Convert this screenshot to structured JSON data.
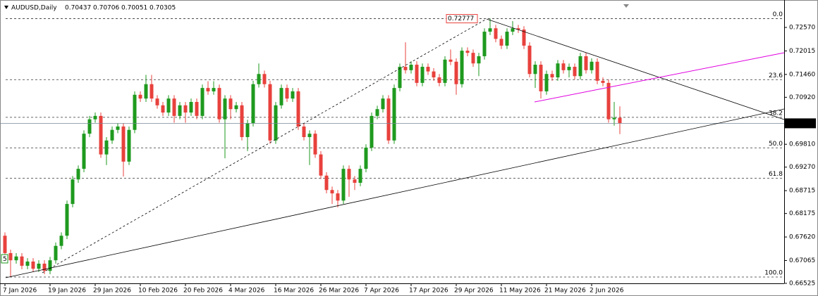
{
  "chart_data": {
    "type": "candlestick",
    "title": "AUDUSD,Daily",
    "categories": [
      "7 Jan 2026",
      null,
      null,
      null,
      null,
      null,
      null,
      null,
      "19 Jan 2026",
      null,
      null,
      null,
      null,
      null,
      null,
      null,
      "29 Jan 2026",
      null,
      null,
      null,
      null,
      null,
      null,
      null,
      "10 Feb 2026",
      null,
      null,
      null,
      null,
      null,
      null,
      null,
      "20 Feb 2026",
      null,
      null,
      null,
      null,
      null,
      null,
      null,
      "4 Mar 2026",
      null,
      null,
      null,
      null,
      null,
      null,
      null,
      "16 Mar 2026",
      null,
      null,
      null,
      null,
      null,
      null,
      null,
      "26 Mar 2026",
      null,
      null,
      null,
      null,
      null,
      null,
      null,
      "7 Apr 2026",
      null,
      null,
      null,
      null,
      null,
      null,
      null,
      "17 Apr 2026",
      null,
      null,
      null,
      null,
      null,
      null,
      null,
      "29 Apr 2026",
      null,
      null,
      null,
      null,
      null,
      null,
      null,
      "11 May 2026",
      null,
      null,
      null,
      null,
      null,
      null,
      null,
      "21 May 2026",
      null,
      null,
      null,
      null,
      null,
      null,
      null,
      "2 Jun 2026",
      null,
      null,
      null,
      null,
      null
    ],
    "open": [
      0.6765,
      0.6724,
      0.6707,
      0.6716,
      0.6694,
      0.6704,
      0.6687,
      0.6699,
      0.6682,
      0.6707,
      0.6741,
      0.6765,
      0.684,
      0.6898,
      0.6923,
      0.7006,
      0.704,
      0.7048,
      0.6957,
      0.699,
      0.7015,
      0.7023,
      0.694,
      0.7015,
      0.7098,
      0.7089,
      0.7123,
      0.7089,
      0.7073,
      0.7056,
      0.7089,
      0.7048,
      0.7073,
      0.7056,
      0.7081,
      0.7048,
      0.7114,
      0.7106,
      0.7114,
      0.704,
      0.7089,
      0.7064,
      0.7073,
      0.6998,
      0.7031,
      0.7123,
      0.7147,
      0.7123,
      0.699,
      0.7073,
      0.7114,
      0.7089,
      0.7106,
      0.7023,
      0.6998,
      0.7006,
      0.6957,
      0.6907,
      0.6873,
      0.6865,
      0.6848,
      0.6923,
      0.6898,
      0.689,
      0.6923,
      0.6973,
      0.7048,
      0.7064,
      0.7089,
      0.699,
      0.7114,
      0.7164,
      0.7156,
      0.7169,
      0.7126,
      0.7164,
      0.7153,
      0.7139,
      0.7126,
      0.7181,
      0.7176,
      0.7123,
      0.7202,
      0.7197,
      0.7172,
      0.7189,
      0.7247,
      0.7255,
      0.723,
      0.7214,
      0.7247,
      0.7255,
      0.7252,
      0.7214,
      0.7147,
      0.7169,
      0.7106,
      0.7147,
      0.7139,
      0.7172,
      0.7156,
      0.7164,
      0.7142,
      0.7189,
      0.7156,
      0.7176,
      0.7131,
      0.7126,
      0.704,
      0.70437
    ],
    "high": [
      0.6773,
      0.6732,
      0.6724,
      0.6724,
      0.6712,
      0.6712,
      0.6707,
      0.6707,
      0.6715,
      0.6749,
      0.6773,
      0.6848,
      0.6906,
      0.6931,
      0.7014,
      0.7048,
      0.7056,
      0.7056,
      0.6998,
      0.7023,
      0.7031,
      0.7031,
      0.7023,
      0.7106,
      0.7106,
      0.7145,
      0.7145,
      0.7097,
      0.7081,
      0.7097,
      0.7097,
      0.7081,
      0.7081,
      0.7089,
      0.7089,
      0.7122,
      0.713,
      0.713,
      0.7122,
      0.7097,
      0.7097,
      0.7081,
      0.7081,
      0.7039,
      0.7131,
      0.7172,
      0.7155,
      0.7131,
      0.7081,
      0.7122,
      0.7122,
      0.7114,
      0.7114,
      0.7031,
      0.7014,
      0.7014,
      0.6965,
      0.6915,
      0.6881,
      0.6873,
      0.6931,
      0.6931,
      0.6906,
      0.6931,
      0.6981,
      0.7056,
      0.7072,
      0.7097,
      0.7097,
      0.7122,
      0.7172,
      0.7222,
      0.7177,
      0.7177,
      0.7172,
      0.7172,
      0.7161,
      0.7147,
      0.7189,
      0.7205,
      0.7184,
      0.721,
      0.721,
      0.7205,
      0.7197,
      0.7255,
      0.7278,
      0.7263,
      0.7238,
      0.7255,
      0.7272,
      0.7263,
      0.726,
      0.7222,
      0.7177,
      0.7177,
      0.7155,
      0.7155,
      0.718,
      0.718,
      0.7172,
      0.7172,
      0.7197,
      0.7197,
      0.7184,
      0.7184,
      0.7139,
      0.7134,
      0.7081,
      0.70706
    ],
    "low": [
      0.6716,
      0.6668,
      0.6699,
      0.6686,
      0.6686,
      0.6679,
      0.6679,
      0.6674,
      0.6674,
      0.6699,
      0.6733,
      0.6757,
      0.6832,
      0.689,
      0.6915,
      0.6998,
      0.7032,
      0.6949,
      0.6932,
      0.6982,
      0.7007,
      0.6905,
      0.6932,
      0.7007,
      0.7081,
      0.7081,
      0.7081,
      0.7065,
      0.7048,
      0.7048,
      0.7032,
      0.704,
      0.7032,
      0.7048,
      0.704,
      0.704,
      0.7098,
      0.7098,
      0.7032,
      0.6948,
      0.704,
      0.7056,
      0.699,
      0.6965,
      0.7023,
      0.7115,
      0.7115,
      0.6982,
      0.6982,
      0.7065,
      0.7081,
      0.7081,
      0.7015,
      0.699,
      0.6932,
      0.6949,
      0.6899,
      0.6865,
      0.684,
      0.6832,
      0.684,
      0.6857,
      0.6873,
      0.6882,
      0.6915,
      0.6965,
      0.704,
      0.7056,
      0.6982,
      0.6982,
      0.7106,
      0.7148,
      0.7148,
      0.7118,
      0.7118,
      0.7145,
      0.7131,
      0.7118,
      0.7118,
      0.7168,
      0.7098,
      0.7115,
      0.7189,
      0.7164,
      0.7142,
      0.7181,
      0.7239,
      0.7222,
      0.7206,
      0.7206,
      0.7239,
      0.7244,
      0.7206,
      0.7139,
      0.7114,
      0.7089,
      0.7098,
      0.7131,
      0.7131,
      0.7148,
      0.7139,
      0.7134,
      0.7134,
      0.7148,
      0.7148,
      0.7123,
      0.7118,
      0.7032,
      0.7025,
      0.70051
    ],
    "close": [
      0.6724,
      0.6707,
      0.6716,
      0.6694,
      0.6704,
      0.6687,
      0.6699,
      0.6682,
      0.6707,
      0.6741,
      0.6765,
      0.684,
      0.6898,
      0.6923,
      0.7006,
      0.704,
      0.7048,
      0.6957,
      0.699,
      0.7015,
      0.7023,
      0.694,
      0.7015,
      0.7098,
      0.7089,
      0.7123,
      0.7089,
      0.7073,
      0.7056,
      0.7089,
      0.7048,
      0.7073,
      0.7056,
      0.7081,
      0.7048,
      0.7114,
      0.7106,
      0.7114,
      0.704,
      0.7089,
      0.7064,
      0.7073,
      0.6998,
      0.7031,
      0.7123,
      0.7147,
      0.7123,
      0.699,
      0.7073,
      0.7114,
      0.7089,
      0.7106,
      0.7023,
      0.6998,
      0.7006,
      0.6957,
      0.6907,
      0.6873,
      0.6865,
      0.6848,
      0.6923,
      0.6898,
      0.689,
      0.6923,
      0.6973,
      0.7048,
      0.7064,
      0.7089,
      0.699,
      0.7114,
      0.7164,
      0.7156,
      0.7169,
      0.7126,
      0.7164,
      0.7153,
      0.7139,
      0.7126,
      0.7181,
      0.7176,
      0.7123,
      0.7202,
      0.7197,
      0.7172,
      0.7189,
      0.7247,
      0.7255,
      0.723,
      0.7214,
      0.7247,
      0.7255,
      0.7252,
      0.7214,
      0.7147,
      0.7169,
      0.7106,
      0.7147,
      0.7139,
      0.7172,
      0.7156,
      0.7164,
      0.7142,
      0.7189,
      0.7156,
      0.7176,
      0.7131,
      0.7126,
      0.704,
      0.70437,
      0.70305
    ],
    "up_color": "#1e9a1e",
    "down_color": "#e8413c",
    "ylim": [
      0.66525,
      0.73218
    ],
    "yticks": [
      {
        "value": 0.7257,
        "label": "0.72570"
      },
      {
        "value": 0.72015,
        "label": "0.72015"
      },
      {
        "value": 0.7146,
        "label": "0.71460"
      },
      {
        "value": 0.7092,
        "label": "0.70920"
      },
      {
        "value": 0.6981,
        "label": "0.69810"
      },
      {
        "value": 0.6927,
        "label": "0.69270"
      },
      {
        "value": 0.68715,
        "label": "0.68715"
      },
      {
        "value": 0.68175,
        "label": "0.68175"
      },
      {
        "value": 0.6762,
        "label": "0.67620"
      },
      {
        "value": 0.67065,
        "label": "0.67065"
      },
      {
        "value": 0.66525,
        "label": "0.66525"
      }
    ],
    "fibonacci": {
      "high": 0.72777,
      "low": 0.66675,
      "levels": [
        {
          "value": 0,
          "label": "0.0"
        },
        23.6,
        38.2,
        {
          "value": 50,
          "label": "50.0"
        },
        61.8,
        {
          "value": 100,
          "label": "100.0"
        }
      ]
    },
    "marker_label": "5"
  }
}
